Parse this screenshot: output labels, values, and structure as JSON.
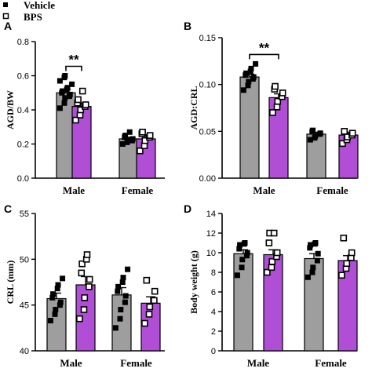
{
  "legend": [
    {
      "label": "Vehicle",
      "marker": "filled-square",
      "color": "#000000",
      "bar_color": "#9e9e9e"
    },
    {
      "label": "BPS",
      "marker": "open-square",
      "color": "#000000",
      "bar_color": "#b04fd6"
    }
  ],
  "chart_data": [
    {
      "panel": "A",
      "type": "bar",
      "ylabel": "AGD/BW",
      "categories": [
        "Male",
        "Female"
      ],
      "ylim": [
        0.0,
        0.8
      ],
      "yticks": [
        "0.0",
        "0.2",
        "0.4",
        "0.6",
        "0.8"
      ],
      "series": [
        {
          "name": "Vehicle",
          "values": [
            0.5,
            0.23
          ],
          "errors": [
            0.02,
            0.01
          ],
          "points": [
            [
              0.41,
              0.44,
              0.47,
              0.48,
              0.49,
              0.5,
              0.51,
              0.52,
              0.53,
              0.55,
              0.57,
              0.59,
              0.6
            ],
            [
              0.2,
              0.21,
              0.22,
              0.22,
              0.23,
              0.24,
              0.25,
              0.27
            ]
          ]
        },
        {
          "name": "BPS",
          "values": [
            0.42,
            0.23
          ],
          "errors": [
            0.02,
            0.02
          ],
          "points": [
            [
              0.34,
              0.37,
              0.4,
              0.42,
              0.43,
              0.44,
              0.46,
              0.51
            ],
            [
              0.16,
              0.19,
              0.22,
              0.24,
              0.25,
              0.26,
              0.27
            ]
          ]
        }
      ],
      "significance": [
        {
          "category": "Male",
          "label": "**"
        }
      ]
    },
    {
      "panel": "B",
      "type": "bar",
      "ylabel": "AGD:CRL",
      "categories": [
        "Male",
        "Female"
      ],
      "ylim": [
        0.0,
        0.15
      ],
      "yticks": [
        "0.00",
        "0.05",
        "0.10",
        "0.15"
      ],
      "series": [
        {
          "name": "Vehicle",
          "values": [
            0.108,
            0.047
          ],
          "errors": [
            0.003,
            0.002
          ],
          "points": [
            [
              0.094,
              0.099,
              0.103,
              0.106,
              0.108,
              0.11,
              0.112,
              0.114,
              0.117,
              0.122
            ],
            [
              0.041,
              0.043,
              0.045,
              0.047,
              0.048,
              0.05,
              0.051
            ]
          ]
        },
        {
          "name": "BPS",
          "values": [
            0.086,
            0.046
          ],
          "errors": [
            0.004,
            0.003
          ],
          "points": [
            [
              0.07,
              0.076,
              0.082,
              0.087,
              0.091,
              0.095,
              0.098
            ],
            [
              0.037,
              0.041,
              0.044,
              0.046,
              0.048,
              0.05
            ]
          ]
        }
      ],
      "significance": [
        {
          "category": "Male",
          "label": "**"
        }
      ]
    },
    {
      "panel": "C",
      "type": "bar",
      "ylabel": "CRL (mm)",
      "categories": [
        "Male",
        "Female"
      ],
      "ylim": [
        40,
        55
      ],
      "yticks": [
        "40",
        "45",
        "50",
        "55"
      ],
      "series": [
        {
          "name": "Vehicle",
          "values": [
            45.7,
            46.1
          ],
          "errors": [
            0.6,
            0.8
          ],
          "points": [
            [
              43.3,
              44.0,
              44.5,
              45.0,
              45.3,
              45.8,
              46.2,
              46.8,
              47.2,
              47.9
            ],
            [
              42.5,
              43.5,
              44.5,
              45.3,
              46.0,
              46.5,
              47.0,
              47.5,
              48.0,
              48.9
            ]
          ]
        },
        {
          "name": "BPS",
          "values": [
            47.2,
            45.2
          ],
          "errors": [
            0.9,
            0.7
          ],
          "points": [
            [
              43.5,
              44.5,
              45.8,
              47.0,
              47.8,
              48.5,
              49.5,
              50.0,
              50.5
            ],
            [
              43.0,
              44.0,
              44.8,
              45.5,
              46.5,
              47.7
            ]
          ]
        }
      ],
      "significance": []
    },
    {
      "panel": "D",
      "type": "bar",
      "ylabel": "Body weight (g)",
      "categories": [
        "Male",
        "Female"
      ],
      "ylim": [
        0,
        14
      ],
      "yticks": [
        "0",
        "2",
        "4",
        "6",
        "8",
        "10",
        "12",
        "14"
      ],
      "series": [
        {
          "name": "Vehicle",
          "values": [
            9.9,
            9.4
          ],
          "errors": [
            0.4,
            0.5
          ],
          "points": [
            [
              7.7,
              8.5,
              9.3,
              9.7,
              10.0,
              10.4,
              10.8,
              10.9,
              11.0
            ],
            [
              7.5,
              8.0,
              8.5,
              9.2,
              9.9,
              10.5,
              10.8,
              10.9,
              11.0
            ]
          ]
        },
        {
          "name": "BPS",
          "values": [
            9.8,
            9.2
          ],
          "errors": [
            0.5,
            0.5
          ],
          "points": [
            [
              8.0,
              8.5,
              9.1,
              9.6,
              10.0,
              11.0,
              12.0,
              12.0
            ],
            [
              7.7,
              8.4,
              8.9,
              9.5,
              10.0,
              11.5
            ]
          ]
        }
      ],
      "significance": []
    }
  ]
}
